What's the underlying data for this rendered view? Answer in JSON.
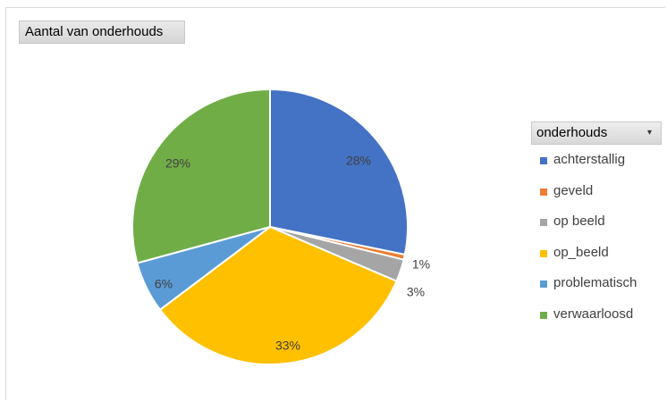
{
  "field_button": {
    "label": "Aantal van onderhouds"
  },
  "legend": {
    "header": "onderhouds",
    "filter_arrow": "▾"
  },
  "chart_data": {
    "type": "pie",
    "title": "",
    "categories": [
      "achterstallig",
      "geveld",
      "op beeld",
      "op_beeld",
      "problematisch",
      "verwaarloosd"
    ],
    "values": [
      28,
      0.6,
      2.6,
      33,
      6,
      29
    ],
    "data_labels": [
      "28%",
      "1%",
      "3%",
      "33%",
      "6%",
      "29%"
    ],
    "colors": [
      "#4472c4",
      "#ed7d31",
      "#a5a5a5",
      "#ffc000",
      "#5b9bd5",
      "#70ad47"
    ],
    "start_angle_deg": 0,
    "direction": "clockwise",
    "legend_position": "right"
  }
}
